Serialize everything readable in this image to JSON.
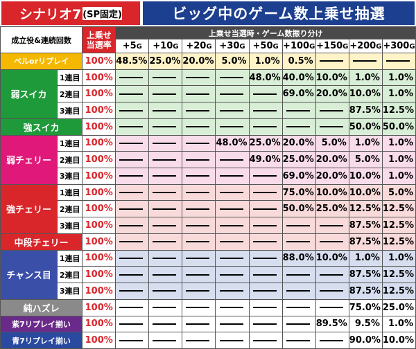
{
  "header": {
    "left_title": "シナリオ7",
    "left_sub": "(SP固定)",
    "right_title": "ビッグ中のゲーム数上乗せ抽選"
  },
  "table_head": {
    "role_label": "成立役&連続回数",
    "rate_label_1": "上乗せ",
    "rate_label_2": "当選率",
    "dist_label": "上乗せ当選時・ゲーム数振り分け",
    "columns": [
      {
        "num": "+5",
        "unit": "G"
      },
      {
        "num": "+10",
        "unit": "G"
      },
      {
        "num": "+20",
        "unit": "G"
      },
      {
        "num": "+30",
        "unit": "G"
      },
      {
        "num": "+50",
        "unit": "G"
      },
      {
        "num": "+100",
        "unit": "G"
      },
      {
        "num": "+150",
        "unit": "G"
      },
      {
        "num": "+200",
        "unit": "G"
      },
      {
        "num": "+300",
        "unit": "G"
      }
    ]
  },
  "groups": [
    {
      "name": "ベルorリプレイ",
      "color": "#f5b800",
      "bg": "#fff3c8",
      "rows": [
        {
          "sub": "",
          "rate": "100%",
          "values": [
            "48.5%",
            "25.0%",
            "20.0%",
            "5.0%",
            "1.0%",
            "0.5%",
            "",
            "",
            ""
          ]
        }
      ]
    },
    {
      "name": "弱スイカ",
      "color": "#1f9a3a",
      "bg": "#d8eed6",
      "rows": [
        {
          "sub": "1連目",
          "rate": "100%",
          "values": [
            "",
            "",
            "",
            "",
            "48.0%",
            "40.0%",
            "10.0%",
            "1.0%",
            "1.0%"
          ]
        },
        {
          "sub": "2連目",
          "rate": "100%",
          "values": [
            "",
            "",
            "",
            "",
            "",
            "69.0%",
            "20.0%",
            "10.0%",
            "1.0%"
          ]
        },
        {
          "sub": "3連目",
          "rate": "100%",
          "values": [
            "",
            "",
            "",
            "",
            "",
            "",
            "",
            "87.5%",
            "12.5%"
          ]
        }
      ]
    },
    {
      "name": "強スイカ",
      "color": "#1f9a3a",
      "bg": "#d8eed6",
      "rows": [
        {
          "sub": "",
          "rate": "100%",
          "values": [
            "",
            "",
            "",
            "",
            "",
            "",
            "",
            "50.0%",
            "50.0%"
          ]
        }
      ]
    },
    {
      "name": "弱チェリー",
      "color": "#e0187a",
      "bg": "#f9dcea",
      "rows": [
        {
          "sub": "1連目",
          "rate": "100%",
          "values": [
            "",
            "",
            "",
            "48.0%",
            "25.0%",
            "20.0%",
            "5.0%",
            "1.0%",
            "1.0%"
          ]
        },
        {
          "sub": "2連目",
          "rate": "100%",
          "values": [
            "",
            "",
            "",
            "",
            "49.0%",
            "25.0%",
            "20.0%",
            "5.0%",
            "1.0%"
          ]
        },
        {
          "sub": "3連目",
          "rate": "100%",
          "values": [
            "",
            "",
            "",
            "",
            "",
            "69.0%",
            "20.0%",
            "10.0%",
            "1.0%"
          ]
        }
      ]
    },
    {
      "name": "強チェリー",
      "color": "#d8262b",
      "bg": "#f8dada",
      "rows": [
        {
          "sub": "1連目",
          "rate": "100%",
          "values": [
            "",
            "",
            "",
            "",
            "",
            "75.0%",
            "10.0%",
            "10.0%",
            "5.0%"
          ]
        },
        {
          "sub": "2連目",
          "rate": "100%",
          "values": [
            "",
            "",
            "",
            "",
            "",
            "50.0%",
            "25.0%",
            "12.5%",
            "12.5%"
          ]
        },
        {
          "sub": "3連目",
          "rate": "100%",
          "values": [
            "",
            "",
            "",
            "",
            "",
            "",
            "",
            "87.5%",
            "12.5%"
          ]
        }
      ]
    },
    {
      "name": "中段チェリー",
      "color": "#d8262b",
      "bg": "#f8dada",
      "rows": [
        {
          "sub": "",
          "rate": "100%",
          "values": [
            "",
            "",
            "",
            "",
            "",
            "",
            "",
            "87.5%",
            "12.5%"
          ]
        }
      ]
    },
    {
      "name": "チャンス目",
      "color": "#3a4fa8",
      "bg": "#d6deef",
      "rows": [
        {
          "sub": "1連目",
          "rate": "100%",
          "values": [
            "",
            "",
            "",
            "",
            "",
            "88.0%",
            "10.0%",
            "1.0%",
            "1.0%"
          ]
        },
        {
          "sub": "2連目",
          "rate": "100%",
          "values": [
            "",
            "",
            "",
            "",
            "",
            "",
            "",
            "87.5%",
            "12.5%"
          ]
        },
        {
          "sub": "3連目",
          "rate": "100%",
          "values": [
            "",
            "",
            "",
            "",
            "",
            "",
            "",
            "87.5%",
            "12.5%"
          ]
        }
      ]
    },
    {
      "name": "純ハズレ",
      "color": "#8a8a8a",
      "bg": "#ffffff",
      "rows": [
        {
          "sub": "",
          "rate": "100%",
          "values": [
            "",
            "",
            "",
            "",
            "",
            "",
            "",
            "75.0%",
            "25.0%"
          ]
        }
      ]
    },
    {
      "name": "紫7リプレイ揃い",
      "color": "#6a2a8a",
      "bg": "#ffffff",
      "rows": [
        {
          "sub": "",
          "rate": "100%",
          "values": [
            "",
            "",
            "",
            "",
            "",
            "",
            "89.5%",
            "9.5%",
            "1.0%"
          ]
        }
      ]
    },
    {
      "name": "青7リプレイ揃い",
      "color": "#2a4aa0",
      "bg": "#ffffff",
      "rows": [
        {
          "sub": "",
          "rate": "100%",
          "values": [
            "",
            "",
            "",
            "",
            "",
            "",
            "",
            "90.0%",
            "10.0%"
          ]
        }
      ]
    }
  ]
}
